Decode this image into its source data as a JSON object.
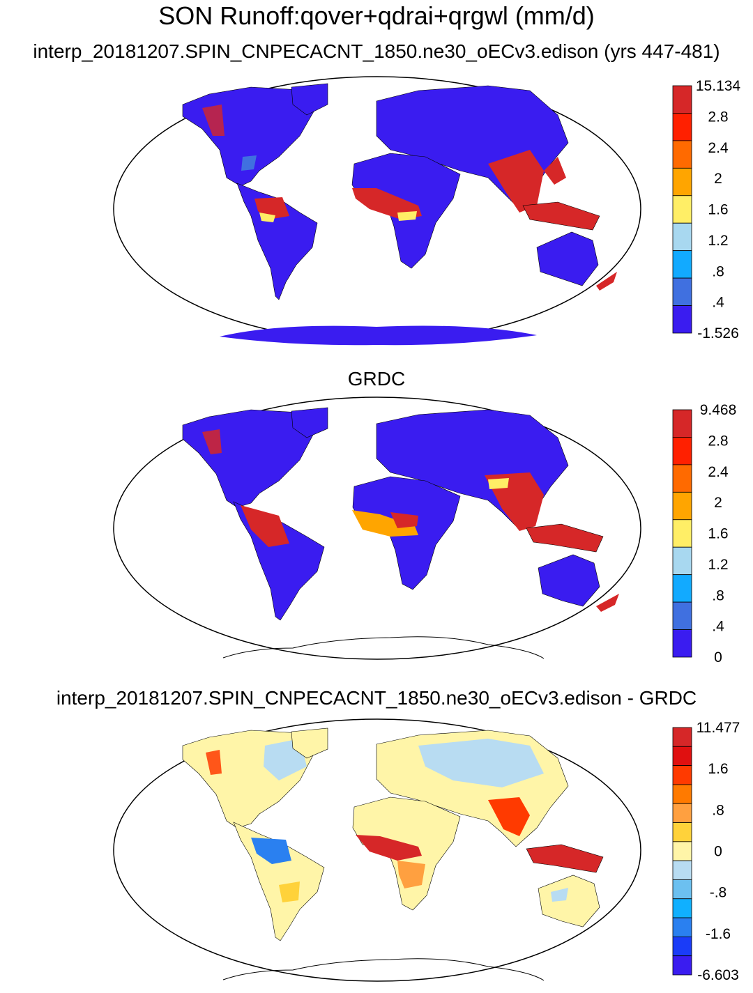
{
  "title": "SON Runoff:qover+qdrai+qrgwl (mm/d)",
  "panels": [
    {
      "title": "interp_20181207.SPIN_CNPECACNT_1850.ne30_oECv3.edison (yrs 447-481)",
      "colorbar": {
        "labels": [
          "15.134",
          "2.8",
          "2.4",
          "2",
          "1.6",
          "1.2",
          ".8",
          ".4",
          "-1.526"
        ],
        "colors": [
          "#d62728",
          "#ff2000",
          "#ff6a00",
          "#ffa500",
          "#ffee66",
          "#a8d8f0",
          "#12aaff",
          "#4070e0",
          "#3a1cf0"
        ]
      }
    },
    {
      "title": "GRDC",
      "colorbar": {
        "labels": [
          "9.468",
          "2.8",
          "2.4",
          "2",
          "1.6",
          "1.2",
          ".8",
          ".4",
          "0"
        ],
        "colors": [
          "#d62728",
          "#ff2000",
          "#ff6a00",
          "#ffa500",
          "#ffee66",
          "#a8d8f0",
          "#12aaff",
          "#4070e0",
          "#3a1cf0"
        ]
      }
    },
    {
      "title": "interp_20181207.SPIN_CNPECACNT_1850.ne30_oECv3.edison - GRDC",
      "colorbar": {
        "labels": [
          "11.477",
          "1.6",
          ".8",
          "0",
          "-.8",
          "-1.6",
          "-6.603"
        ],
        "colors": [
          "#d62728",
          "#e01010",
          "#ff3a00",
          "#ff7a00",
          "#ffa040",
          "#ffd23a",
          "#fff5a8",
          "#b8dcf2",
          "#6cc0f0",
          "#10b0ff",
          "#2a80f0",
          "#1a3cf8",
          "#3a1cf0"
        ]
      }
    }
  ]
}
